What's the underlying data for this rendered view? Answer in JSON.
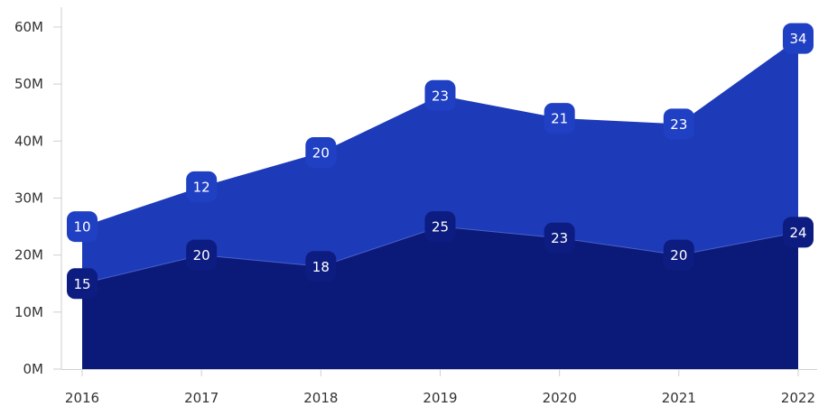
{
  "chart_data": {
    "type": "area",
    "stacked": true,
    "categories": [
      "2016",
      "2017",
      "2018",
      "2019",
      "2020",
      "2021",
      "2022"
    ],
    "series": [
      {
        "values": [
          15,
          20,
          18,
          25,
          23,
          20,
          24
        ],
        "color": "#0b1a78"
      },
      {
        "values": [
          10,
          12,
          20,
          23,
          21,
          23,
          34
        ],
        "color": "#1d3ab8"
      }
    ],
    "y_ticks": [
      "0M",
      "10M",
      "20M",
      "30M",
      "40M",
      "50M",
      "60M"
    ],
    "ylim": [
      0,
      60
    ],
    "grid": false,
    "legend": "none",
    "title": "",
    "xlabel": "",
    "ylabel": ""
  }
}
